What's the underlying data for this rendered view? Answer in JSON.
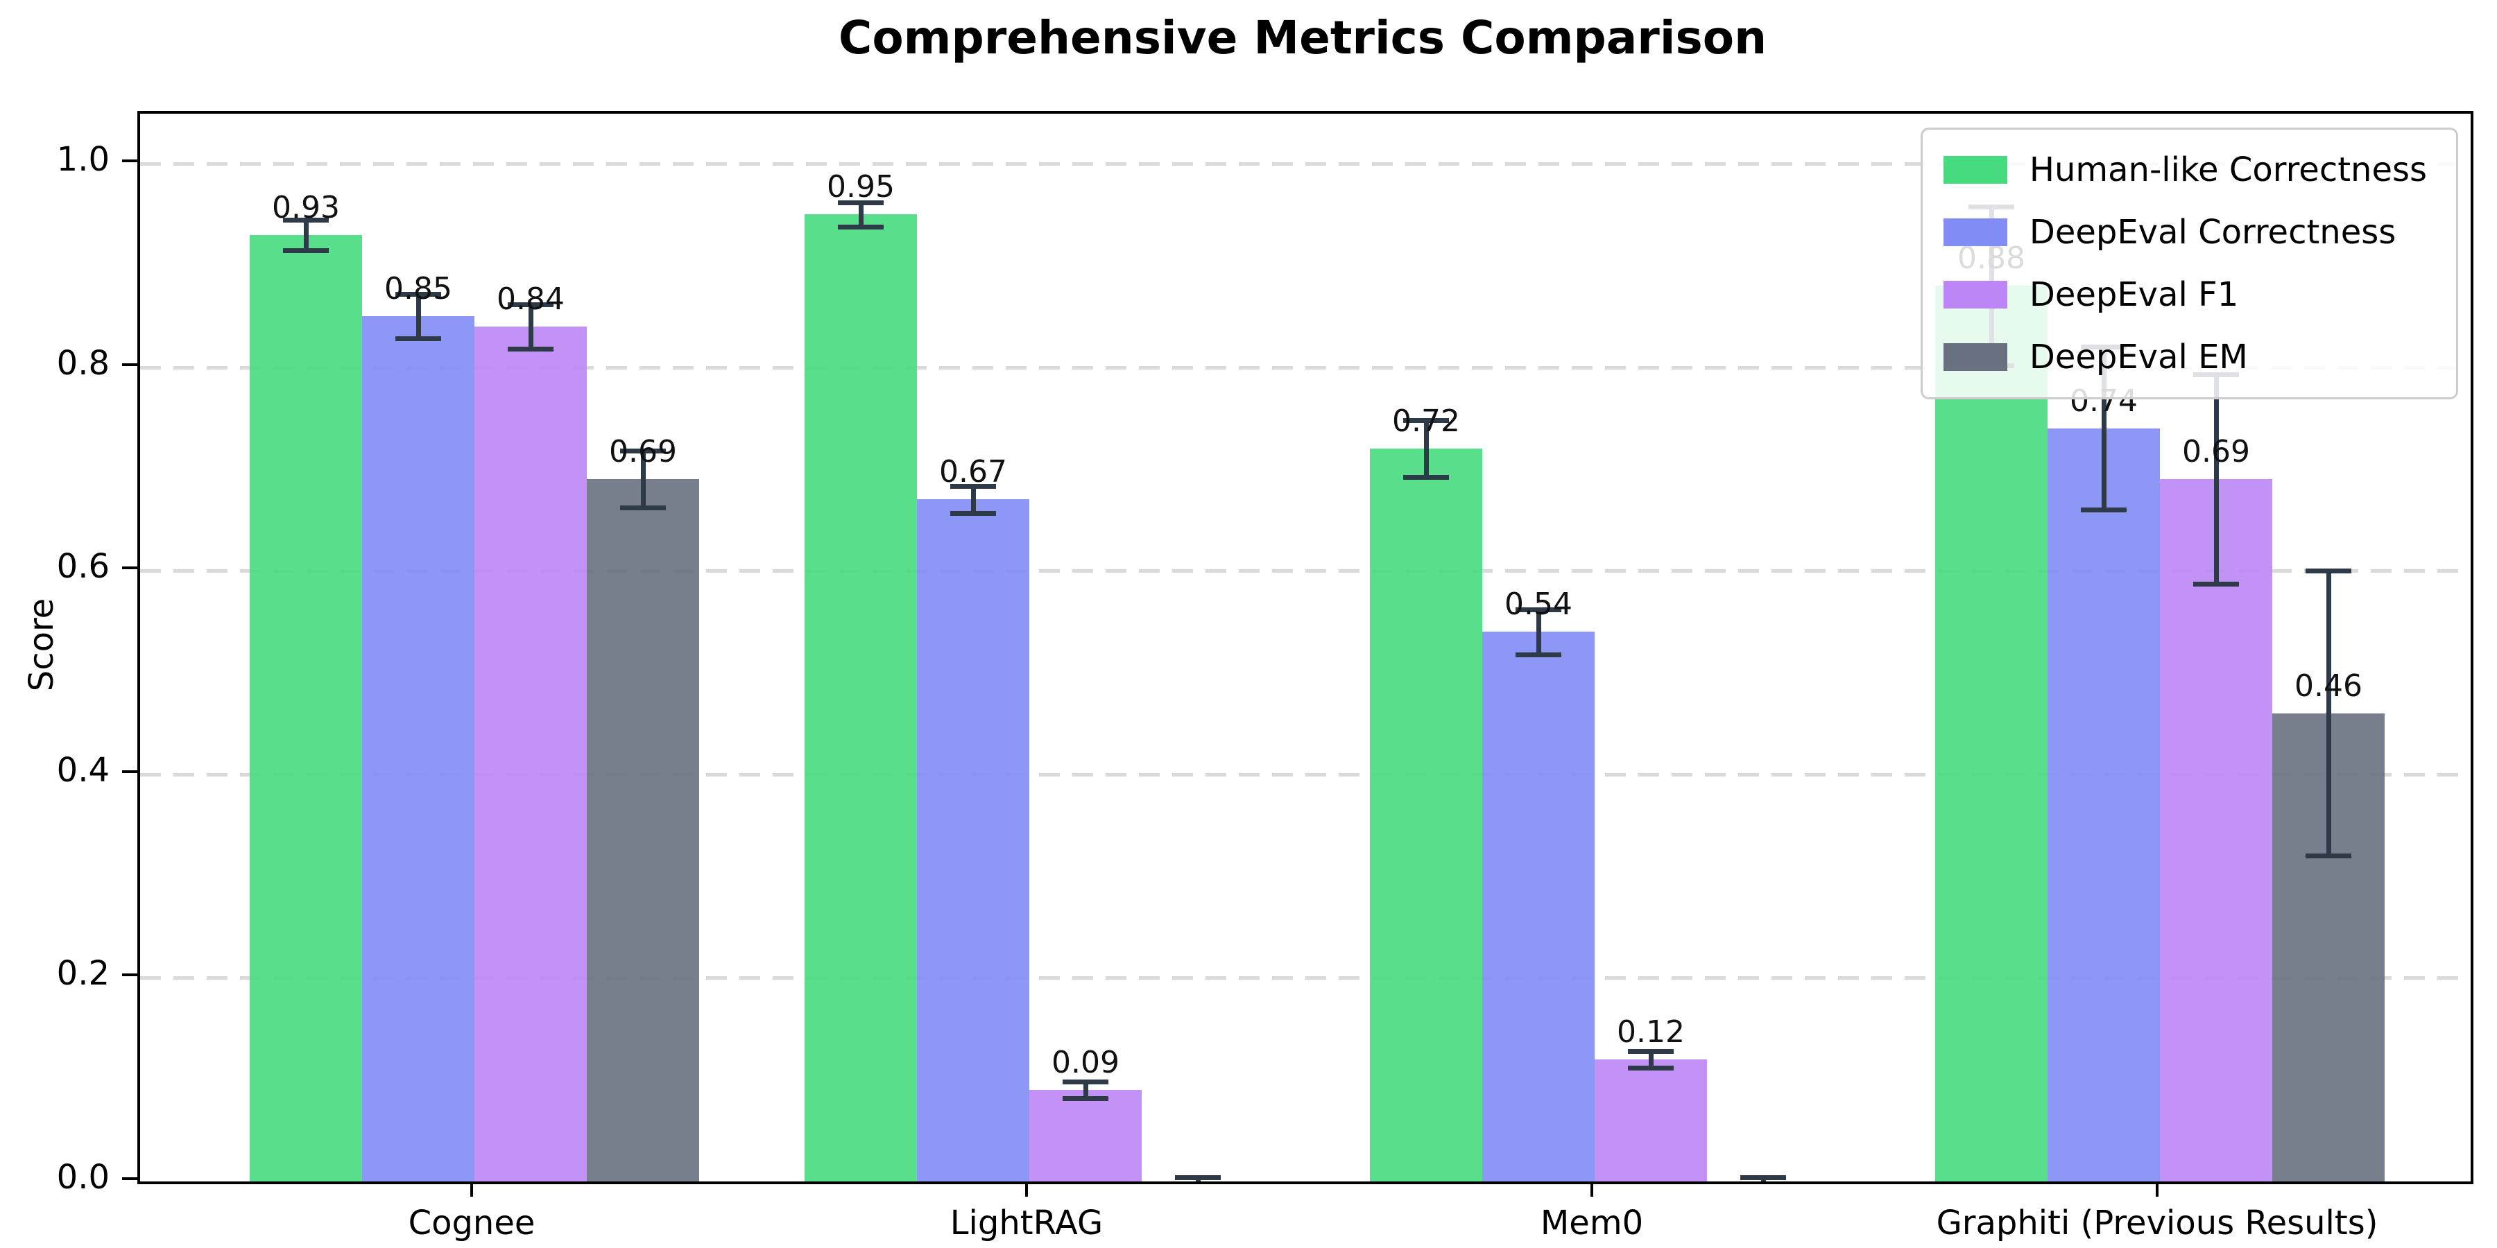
{
  "title": "Comprehensive Metrics Comparison",
  "colors": {
    "axis": "#000000",
    "grid": "#d9d9d9",
    "error_bar": "#2f3a49",
    "legend_border": "#cccccc",
    "series_green": "#47db80",
    "series_blue": "#818df5",
    "series_purple": "#bd86f6",
    "series_gray": "#697180"
  },
  "chart_data": {
    "type": "bar",
    "title": "Comprehensive Metrics Comparison",
    "xlabel": "",
    "ylabel": "Score",
    "ylim": [
      0.0,
      1.05
    ],
    "yticks": [
      0.0,
      0.2,
      0.4,
      0.6,
      0.8,
      1.0
    ],
    "ytick_labels": [
      "0.0",
      "0.2",
      "0.4",
      "0.6",
      "0.8",
      "1.0"
    ],
    "grid": "horizontal dashed",
    "legend_position": "upper right",
    "categories": [
      "Cognee",
      "LightRAG",
      "Mem0",
      "Graphiti (Previous Results)"
    ],
    "series": [
      {
        "name": "Human-like Correctness",
        "color": "#47db80",
        "values": [
          0.93,
          0.95,
          0.72,
          0.88
        ],
        "errors": [
          0.015,
          0.012,
          0.028,
          0.078
        ],
        "labels": [
          "0.93",
          "0.95",
          "0.72",
          "0.88"
        ]
      },
      {
        "name": "DeepEval Correctness",
        "color": "#818df5",
        "values": [
          0.85,
          0.67,
          0.54,
          0.74
        ],
        "errors": [
          0.022,
          0.013,
          0.022,
          0.08
        ],
        "labels": [
          "0.85",
          "0.67",
          "0.54",
          "0.74"
        ]
      },
      {
        "name": "DeepEval F1",
        "color": "#bd86f6",
        "values": [
          0.84,
          0.09,
          0.12,
          0.69
        ],
        "errors": [
          0.022,
          0.008,
          0.008,
          0.103
        ],
        "labels": [
          "0.84",
          "0.09",
          "0.12",
          "0.69"
        ]
      },
      {
        "name": "DeepEval EM",
        "color": "#697180",
        "values": [
          0.69,
          0.0,
          0.0,
          0.46
        ],
        "errors": [
          0.028,
          0.004,
          0.004,
          0.14
        ],
        "labels": [
          "0.69",
          "",
          "",
          "0.46"
        ]
      }
    ]
  }
}
